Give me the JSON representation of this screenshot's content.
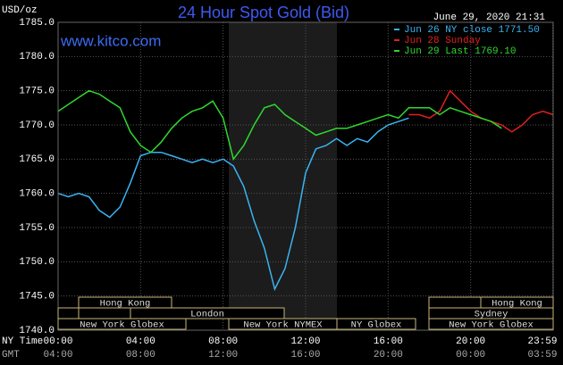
{
  "chart_data": {
    "type": "line",
    "title": "24 Hour Spot Gold (Bid)",
    "unit_label": "USD/oz",
    "site": "www.kitco.com",
    "timestamp": "June 29, 2020 21:31",
    "x_axis_label": "NY Time",
    "x2_axis_label": "GMT",
    "x2_tick_labels": [
      "04:00",
      "08:00",
      "12:00",
      "16:00",
      "20:00",
      "00:00",
      "03:59"
    ],
    "xlim": [
      0,
      24
    ],
    "xticks": [
      {
        "value": 0,
        "label": "00:00"
      },
      {
        "value": 4,
        "label": "04:00"
      },
      {
        "value": 8,
        "label": "08:00"
      },
      {
        "value": 12,
        "label": "12:00"
      },
      {
        "value": 16,
        "label": "16:00"
      },
      {
        "value": 20,
        "label": "20:00"
      },
      {
        "value": 23.983,
        "label": "23:59"
      }
    ],
    "ylim": [
      1740,
      1785
    ],
    "yticks": [
      {
        "value": 1740,
        "label": "1740.0"
      },
      {
        "value": 1745,
        "label": "1745.0"
      },
      {
        "value": 1750,
        "label": "1750.0"
      },
      {
        "value": 1755,
        "label": "1755.0"
      },
      {
        "value": 1760,
        "label": "1760.0"
      },
      {
        "value": 1765,
        "label": "1765.0"
      },
      {
        "value": 1770,
        "label": "1770.0"
      },
      {
        "value": 1775,
        "label": "1775.0"
      },
      {
        "value": 1780,
        "label": "1780.0"
      },
      {
        "value": 1785,
        "label": "1785.0"
      }
    ],
    "grid": true,
    "sessions": [
      "Hong Kong",
      "Hong Kong",
      "London",
      "Sydney",
      "New York Globex",
      "New York NYMEX",
      "NY Globex",
      "New York Globex"
    ],
    "series": [
      {
        "name": "Jun 26 NY close 1771.50",
        "color": "#3ab4f2",
        "x": [
          0,
          0.5,
          1,
          1.5,
          2,
          2.5,
          3,
          3.5,
          4,
          4.5,
          5,
          5.5,
          6,
          6.5,
          7,
          7.5,
          8,
          8.5,
          9,
          9.5,
          10,
          10.5,
          11,
          11.5,
          12,
          12.5,
          13,
          13.5,
          14,
          14.5,
          15,
          15.5,
          16,
          16.5,
          17
        ],
        "values": [
          1760,
          1759.5,
          1760,
          1759.5,
          1757.5,
          1756.5,
          1758,
          1761.5,
          1765.5,
          1766,
          1766,
          1765.5,
          1765,
          1764.5,
          1765,
          1764.5,
          1765,
          1764,
          1761,
          1756,
          1752,
          1746,
          1749,
          1755,
          1763,
          1766.5,
          1767,
          1768,
          1767,
          1768,
          1767.5,
          1769,
          1770,
          1770.5,
          1771
        ]
      },
      {
        "name": "Jun 28 Sunday",
        "color": "#e0201c",
        "x": [
          17,
          17.5,
          18,
          18.5,
          19,
          19.5,
          20,
          20.5,
          21,
          21.5,
          22,
          22.5,
          23,
          23.5,
          24
        ],
        "values": [
          1771.5,
          1771.5,
          1771,
          1772,
          1775,
          1773.5,
          1772,
          1771,
          1770.5,
          1770,
          1769,
          1770,
          1771.5,
          1772,
          1771.5
        ]
      },
      {
        "name": "Jun 29 Last 1769.10",
        "color": "#2ed82e",
        "x": [
          0,
          0.5,
          1,
          1.5,
          2,
          2.5,
          3,
          3.5,
          4,
          4.5,
          5,
          5.5,
          6,
          6.5,
          7,
          7.5,
          8,
          8.5,
          9,
          9.5,
          10,
          10.5,
          11,
          11.5,
          12,
          12.5,
          13,
          13.5,
          14,
          14.5,
          15,
          15.5,
          16,
          16.5,
          17,
          17.5,
          18,
          18.5,
          19,
          19.5,
          20,
          20.5,
          21,
          21.5
        ],
        "values": [
          1772,
          1773,
          1774,
          1775,
          1774.5,
          1773.5,
          1772.5,
          1769,
          1767,
          1766,
          1767.5,
          1769.5,
          1771,
          1772,
          1772.5,
          1773.5,
          1771,
          1765,
          1767,
          1770,
          1772.5,
          1773,
          1771.5,
          1770.5,
          1769.5,
          1768.5,
          1769,
          1769.5,
          1769.5,
          1770,
          1770.5,
          1771,
          1771.5,
          1771,
          1772.5,
          1772.5,
          1772.5,
          1771.5,
          1772.5,
          1772,
          1771.5,
          1771,
          1770.5,
          1769.5
        ]
      }
    ]
  }
}
